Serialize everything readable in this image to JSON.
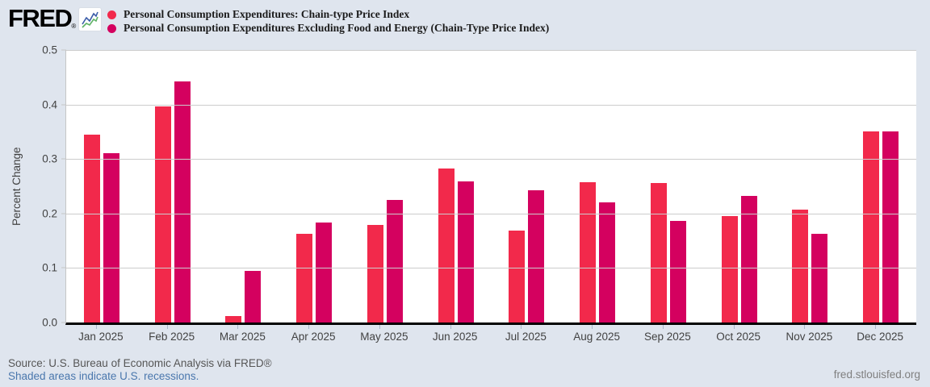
{
  "header": {
    "logo_text": "FRED",
    "reg_mark": "®",
    "legend": [
      {
        "label": "Personal Consumption Expenditures: Chain-type Price Index",
        "color": "#f2294b"
      },
      {
        "label": "Personal Consumption Expenditures Excluding Food and Energy (Chain-Type Price Index)",
        "color": "#d4015f"
      }
    ]
  },
  "chart_data": {
    "type": "bar",
    "title": "",
    "ylabel": "Percent Change",
    "xlabel": "",
    "ylim": [
      0,
      0.5
    ],
    "yticks": [
      0,
      0.1,
      0.2,
      0.3,
      0.4,
      0.5
    ],
    "grid": true,
    "legend_position": "top-left",
    "categories": [
      "Jan 2025",
      "Feb 2025",
      "Mar 2025",
      "Apr 2025",
      "May 2025",
      "Jun 2025",
      "Jul 2025",
      "Aug 2025",
      "Sep 2025",
      "Oct 2025",
      "Nov 2025",
      "Dec 2025"
    ],
    "series": [
      {
        "name": "Personal Consumption Expenditures: Chain-type Price Index",
        "color": "#f2294b",
        "values": [
          0.345,
          0.397,
          0.012,
          0.163,
          0.179,
          0.283,
          0.168,
          0.258,
          0.256,
          0.196,
          0.207,
          0.351
        ]
      },
      {
        "name": "Personal Consumption Expenditures Excluding Food and Energy (Chain-Type Price Index)",
        "color": "#d4015f",
        "values": [
          0.31,
          0.442,
          0.095,
          0.184,
          0.225,
          0.259,
          0.242,
          0.221,
          0.186,
          0.232,
          0.163,
          0.351
        ]
      }
    ]
  },
  "footer": {
    "source": "Source: U.S. Bureau of Economic Analysis via FRED®",
    "recessions_note": "Shaded areas indicate U.S. recessions.",
    "site": "fred.stlouisfed.org"
  },
  "colors": {
    "background": "#dfe5ee",
    "plot_background": "#ffffff",
    "gridline": "#cccccc",
    "axis_line": "#000000",
    "tick_text": "#424242",
    "series_1": "#f2294b",
    "series_2": "#d4015f",
    "link_blue": "#4a77ad",
    "source_text": "#565656",
    "site_text": "#7f7f7f"
  }
}
